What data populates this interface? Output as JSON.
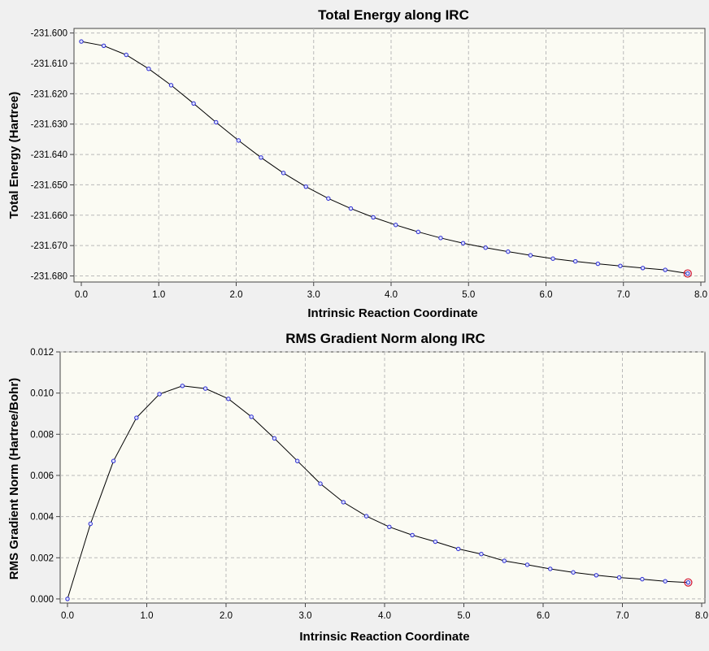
{
  "chart_data": [
    {
      "type": "line",
      "title": "Total Energy along IRC",
      "xlabel": "Intrinsic Reaction Coordinate",
      "ylabel": "Total Energy (Hartree)",
      "xlim": [
        0,
        8
      ],
      "ylim": [
        -231.682,
        -231.5985
      ],
      "xticks": [
        0,
        1,
        2,
        3,
        4,
        5,
        6,
        7,
        8
      ],
      "xtick_labels": [
        "0.0",
        "1.0",
        "2.0",
        "3.0",
        "4.0",
        "5.0",
        "6.0",
        "7.0",
        "8.0"
      ],
      "yticks": [
        -231.6,
        -231.61,
        -231.62,
        -231.63,
        -231.64,
        -231.65,
        -231.66,
        -231.67,
        -231.68
      ],
      "ytick_labels": [
        "-231.600",
        "-231.610",
        "-231.620",
        "-231.630",
        "-231.640",
        "-231.650",
        "-231.660",
        "-231.670",
        "-231.680"
      ],
      "x": [
        0.0,
        0.29,
        0.58,
        0.87,
        1.16,
        1.45,
        1.74,
        2.03,
        2.32,
        2.61,
        2.9,
        3.19,
        3.48,
        3.77,
        4.06,
        4.35,
        4.64,
        4.93,
        5.22,
        5.51,
        5.8,
        6.09,
        6.38,
        6.67,
        6.96,
        7.25,
        7.54,
        7.83
      ],
      "y": [
        -231.6028,
        -231.6042,
        -231.6072,
        -231.6118,
        -231.6172,
        -231.6232,
        -231.6294,
        -231.6354,
        -231.641,
        -231.6461,
        -231.6506,
        -231.6545,
        -231.6578,
        -231.6607,
        -231.6632,
        -231.6655,
        -231.6675,
        -231.6692,
        -231.6707,
        -231.672,
        -231.6732,
        -231.6743,
        -231.6752,
        -231.676,
        -231.6767,
        -231.6774,
        -231.678,
        -231.6792
      ],
      "highlight_index": 27,
      "grid": true
    },
    {
      "type": "line",
      "title": "RMS Gradient Norm along IRC",
      "xlabel": "Intrinsic Reaction Coordinate",
      "ylabel": "RMS Gradient Norm (Hartree/Bohr)",
      "xlim": [
        0,
        8
      ],
      "ylim": [
        -0.0002,
        0.012
      ],
      "xticks": [
        0,
        1,
        2,
        3,
        4,
        5,
        6,
        7,
        8
      ],
      "xtick_labels": [
        "0.0",
        "1.0",
        "2.0",
        "3.0",
        "4.0",
        "5.0",
        "6.0",
        "7.0",
        "8.0"
      ],
      "yticks": [
        0.0,
        0.002,
        0.004,
        0.006,
        0.008,
        0.01,
        0.012
      ],
      "ytick_labels": [
        "0.000",
        "0.002",
        "0.004",
        "0.006",
        "0.008",
        "0.010",
        "0.012"
      ],
      "x": [
        0.0,
        0.29,
        0.58,
        0.87,
        1.16,
        1.45,
        1.74,
        2.03,
        2.32,
        2.61,
        2.9,
        3.19,
        3.48,
        3.77,
        4.06,
        4.35,
        4.64,
        4.93,
        5.22,
        5.51,
        5.8,
        6.09,
        6.38,
        6.67,
        6.96,
        7.25,
        7.54,
        7.83
      ],
      "y": [
        0.0,
        0.00365,
        0.0067,
        0.0088,
        0.00995,
        0.01035,
        0.01022,
        0.00972,
        0.00885,
        0.0078,
        0.0067,
        0.0056,
        0.0047,
        0.00402,
        0.0035,
        0.0031,
        0.00278,
        0.00243,
        0.00218,
        0.00185,
        0.00166,
        0.00146,
        0.00129,
        0.00115,
        0.00104,
        0.00096,
        0.00086,
        0.0008
      ],
      "highlight_index": 27,
      "grid": true
    }
  ]
}
